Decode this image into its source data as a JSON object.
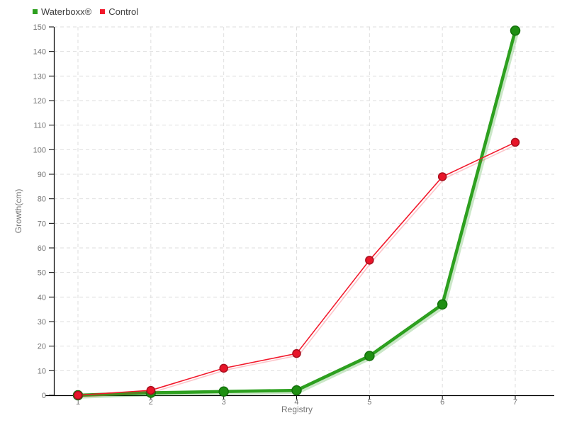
{
  "chart_data": {
    "type": "line",
    "title": "",
    "xlabel": "Registry",
    "ylabel": "Growth(cm)",
    "categories": [
      1,
      2,
      3,
      4,
      5,
      6,
      7
    ],
    "series": [
      {
        "name": "Waterboxx®",
        "color": "#2da01f",
        "marker_fill": "#1f8f13",
        "marker_stroke": "#12700a",
        "line_width": 4.5,
        "marker_radius": 6.5,
        "values": [
          0,
          1,
          1.5,
          2,
          16,
          37,
          148.5
        ]
      },
      {
        "name": "Control",
        "color": "#f2182b",
        "marker_fill": "#e81529",
        "marker_stroke": "#a80f1e",
        "line_width": 1.6,
        "marker_radius": 5.5,
        "values": [
          0,
          2,
          11,
          17,
          55,
          89,
          103
        ]
      }
    ],
    "ylim": [
      0,
      150
    ],
    "ytick_step": 10,
    "yticks": [
      0,
      10,
      20,
      30,
      40,
      50,
      60,
      70,
      80,
      90,
      100,
      110,
      120,
      130,
      140,
      150
    ],
    "grid": "dashed",
    "legend_position": "top-left"
  },
  "colors": {
    "background": "#ffffff",
    "axis_line": "#000000",
    "grid_line": "#dedede",
    "tick_label": "#757575",
    "axis_title": "#757575",
    "legend_text": "#3d3d3d"
  }
}
